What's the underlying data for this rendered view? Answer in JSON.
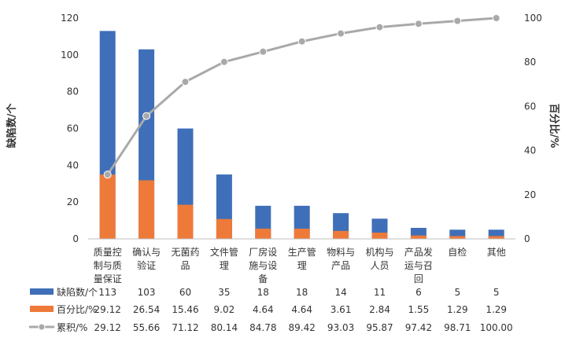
{
  "chart_data": {
    "type": "bar+line",
    "categories": [
      [
        "质量控",
        "制与质",
        "量保证"
      ],
      [
        "确认与",
        "验证"
      ],
      [
        "无菌药",
        "品"
      ],
      [
        "文件管",
        "理"
      ],
      [
        "厂房设",
        "施与设",
        "备"
      ],
      [
        "生产管",
        "理"
      ],
      [
        "物料与",
        "产品"
      ],
      [
        "机构与",
        "人员"
      ],
      [
        "产品发",
        "运与召",
        "回"
      ],
      [
        "自检"
      ],
      [
        "其他"
      ]
    ],
    "series": [
      {
        "name": "缺陷数/个",
        "type": "bar",
        "axis": "left",
        "color": "#3f6fb8",
        "values": [
          113,
          103,
          60,
          35,
          18,
          18,
          14,
          11,
          6,
          5,
          5
        ],
        "labels": [
          "113",
          "103",
          "60",
          "35",
          "18",
          "18",
          "14",
          "11",
          "6",
          "5",
          "5"
        ]
      },
      {
        "name": "百分比/%",
        "type": "bar",
        "axis": "right",
        "color": "#ee7a3a",
        "values": [
          29.12,
          26.54,
          15.46,
          9.02,
          4.64,
          4.64,
          3.61,
          2.84,
          1.55,
          1.29,
          1.29
        ],
        "labels": [
          "29.12",
          "26.54",
          "15.46",
          "9.02",
          "4.64",
          "4.64",
          "3.61",
          "2.84",
          "1.55",
          "1.29",
          "1.29"
        ]
      },
      {
        "name": "累积/%",
        "type": "line",
        "axis": "right",
        "color": "#a9a9a9",
        "values": [
          29.12,
          55.66,
          71.12,
          80.14,
          84.78,
          89.42,
          93.03,
          95.87,
          97.42,
          98.71,
          100.0
        ],
        "labels": [
          "29.12",
          "55.66",
          "71.12",
          "80.14",
          "84.78",
          "89.42",
          "93.03",
          "95.87",
          "97.42",
          "98.71",
          "100.00"
        ]
      }
    ],
    "ylabel": "缺陷数/个",
    "y2label": "百分比/%",
    "ylim": [
      0,
      120
    ],
    "y2lim": [
      0,
      100
    ],
    "yticks": [
      0,
      20,
      40,
      60,
      80,
      100,
      120
    ],
    "y2ticks": [
      0,
      20,
      40,
      60,
      80,
      100
    ],
    "grid": false,
    "legend": "bottom data table"
  }
}
